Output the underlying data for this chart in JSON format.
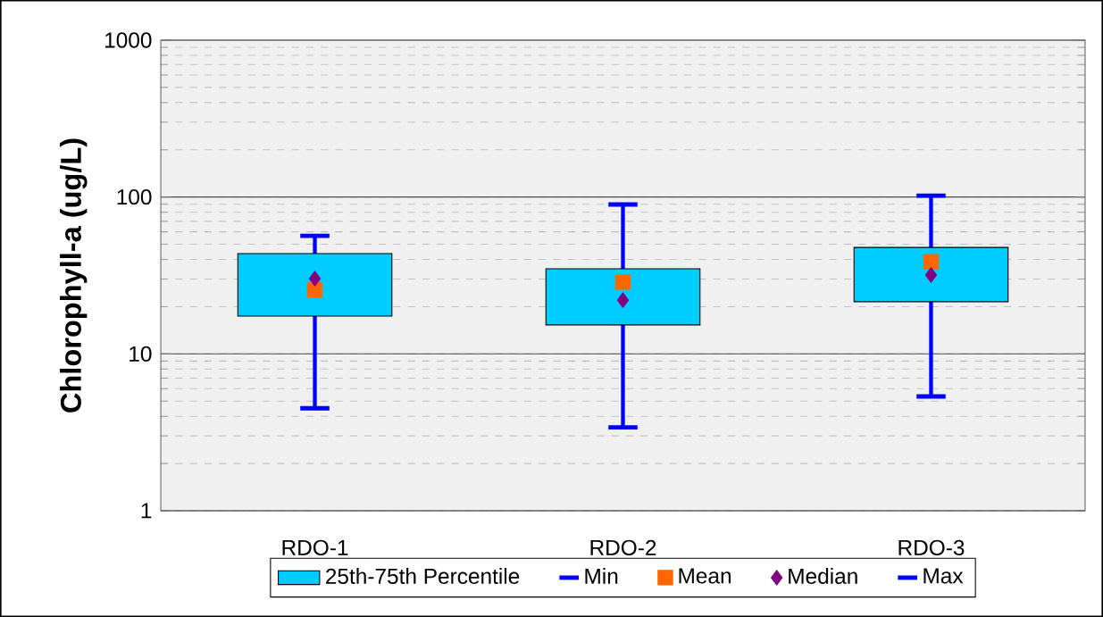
{
  "chart_data": {
    "type": "box",
    "ylabel": "Chlorophyll-a (ug/L)",
    "categories": [
      "RDO-1",
      "RDO-2",
      "RDO-3"
    ],
    "log": "y",
    "ylim": [
      1,
      1000
    ],
    "yticks": [
      1,
      10,
      100,
      1000
    ],
    "grid": "y",
    "legend": "bottom",
    "series": [
      {
        "name": "25th-75th Percentile",
        "color": "#00ccff",
        "boxes": [
          {
            "low": 4.5,
            "q1": 17.4,
            "median": 30.2,
            "q3": 43.6,
            "high": 56.6,
            "mean": 25.5
          },
          {
            "low": 3.4,
            "q1": 15.3,
            "median": 22.0,
            "q3": 34.9,
            "high": 89.6,
            "mean": 28.7
          },
          {
            "low": 5.35,
            "q1": 21.5,
            "median": 31.8,
            "q3": 47.7,
            "high": 102,
            "mean": 38.7
          }
        ]
      },
      {
        "name": "Min",
        "type": "scatter",
        "color": "#0000ff",
        "values": [
          null,
          null,
          null
        ]
      },
      {
        "name": "Mean",
        "type": "scatter",
        "color": "#ff6600",
        "marker": "square",
        "values": [
          null,
          null,
          null
        ]
      },
      {
        "name": "Median",
        "type": "scatter",
        "color": "#800080",
        "marker": "diamond",
        "values": [
          null,
          null,
          null
        ]
      },
      {
        "name": "Max",
        "type": "scatter",
        "color": "#0000ff",
        "values": [
          null,
          null,
          null
        ]
      }
    ]
  }
}
